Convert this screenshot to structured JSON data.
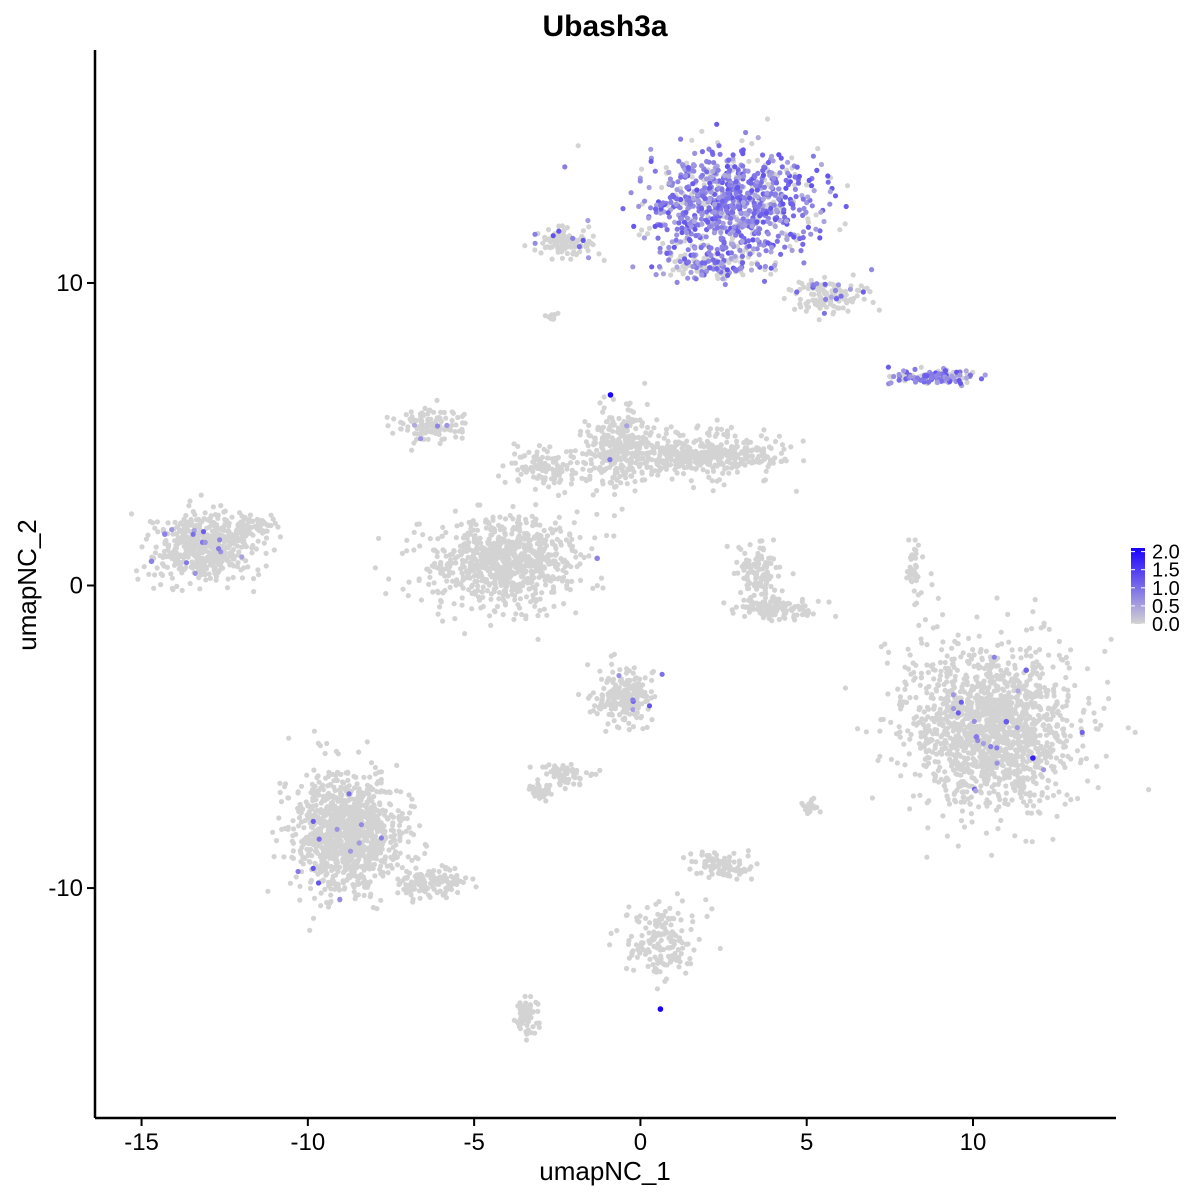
{
  "chart_data": {
    "type": "scatter",
    "title": "Ubash3a",
    "xlabel": "umapNC_1",
    "ylabel": "umapNC_2",
    "xlim": [
      -16.4,
      14.3
    ],
    "ylim": [
      -17.6,
      17.7
    ],
    "xticks": [
      -15,
      -10,
      -5,
      0,
      5,
      10
    ],
    "xtick_labels": [
      "-15",
      "-10",
      "-5",
      "0",
      "5",
      "10"
    ],
    "yticks": [
      -10,
      0,
      10
    ],
    "ytick_labels": [
      "-10",
      "0",
      "10"
    ],
    "grid": false,
    "legend": {
      "placement": "right",
      "type": "colorbar",
      "color_low": "#d3d3d3",
      "color_high": "#1a00ff",
      "range": [
        0,
        2.1
      ],
      "labels": [
        "0.0",
        "0.5",
        "1.0",
        "1.5",
        "2.0"
      ],
      "values": [
        0.0,
        0.5,
        1.0,
        1.5,
        2.0
      ]
    },
    "clusters": [
      {
        "center": [
          2.8,
          12.6
        ],
        "spread": [
          2.2,
          1.6
        ],
        "count": 900,
        "expression": 0.7
      },
      {
        "center": [
          -2.3,
          11.3
        ],
        "spread": [
          0.8,
          0.4
        ],
        "count": 120,
        "expression": 0.05
      },
      {
        "center": [
          2.0,
          10.6
        ],
        "spread": [
          1.4,
          0.4
        ],
        "count": 130,
        "expression": 0.4
      },
      {
        "center": [
          5.6,
          9.6
        ],
        "spread": [
          1.0,
          0.5
        ],
        "count": 130,
        "expression": 0.1
      },
      {
        "center": [
          -2.7,
          8.9
        ],
        "spread": [
          0.2,
          0.1
        ],
        "count": 12,
        "expression": 0.0
      },
      {
        "center": [
          8.8,
          6.9
        ],
        "spread": [
          1.2,
          0.2
        ],
        "count": 120,
        "expression": 0.6
      },
      {
        "center": [
          -0.6,
          4.6
        ],
        "spread": [
          1.0,
          1.3
        ],
        "count": 300,
        "expression": 0.01
      },
      {
        "center": [
          1.8,
          4.3
        ],
        "spread": [
          2.2,
          0.7
        ],
        "count": 420,
        "expression": 0.0
      },
      {
        "center": [
          -2.9,
          3.9
        ],
        "spread": [
          0.8,
          0.6
        ],
        "count": 120,
        "expression": 0.0
      },
      {
        "center": [
          -6.3,
          5.3
        ],
        "spread": [
          0.9,
          0.5
        ],
        "count": 120,
        "expression": 0.02
      },
      {
        "center": [
          -4.1,
          0.8
        ],
        "spread": [
          2.0,
          1.3
        ],
        "count": 800,
        "expression": 0.0
      },
      {
        "center": [
          -13.1,
          1.3
        ],
        "spread": [
          1.4,
          1.0
        ],
        "count": 500,
        "expression": 0.02
      },
      {
        "center": [
          -11.6,
          2.0
        ],
        "spread": [
          0.6,
          0.3
        ],
        "count": 40,
        "expression": 0.0
      },
      {
        "center": [
          3.5,
          0.3
        ],
        "spread": [
          0.6,
          1.0
        ],
        "count": 120,
        "expression": 0.0
      },
      {
        "center": [
          4.2,
          -0.8
        ],
        "spread": [
          1.1,
          0.3
        ],
        "count": 100,
        "expression": 0.0
      },
      {
        "center": [
          8.2,
          0.4
        ],
        "spread": [
          0.2,
          1.0
        ],
        "count": 40,
        "expression": 0.0
      },
      {
        "center": [
          10.5,
          -4.6
        ],
        "spread": [
          2.3,
          2.4
        ],
        "count": 1500,
        "expression": 0.01
      },
      {
        "center": [
          -0.5,
          -3.7
        ],
        "spread": [
          0.8,
          0.8
        ],
        "count": 220,
        "expression": 0.03
      },
      {
        "center": [
          -2.3,
          -6.3
        ],
        "spread": [
          0.7,
          0.4
        ],
        "count": 60,
        "expression": 0.0
      },
      {
        "center": [
          -3.0,
          -6.8
        ],
        "spread": [
          0.3,
          0.2
        ],
        "count": 40,
        "expression": 0.0
      },
      {
        "center": [
          2.4,
          -9.2
        ],
        "spread": [
          0.8,
          0.4
        ],
        "count": 90,
        "expression": 0.0
      },
      {
        "center": [
          -8.8,
          -8.2
        ],
        "spread": [
          1.5,
          1.8
        ],
        "count": 1100,
        "expression": 0.01
      },
      {
        "center": [
          -6.3,
          -9.8
        ],
        "spread": [
          1.0,
          0.4
        ],
        "count": 120,
        "expression": 0.0
      },
      {
        "center": [
          -3.4,
          -14.2
        ],
        "spread": [
          0.3,
          0.6
        ],
        "count": 60,
        "expression": 0.0
      },
      {
        "center": [
          0.6,
          -11.7
        ],
        "spread": [
          1.0,
          1.2
        ],
        "count": 160,
        "expression": 0.0
      },
      {
        "center": [
          5.1,
          -7.3
        ],
        "spread": [
          0.3,
          0.3
        ],
        "count": 20,
        "expression": 0.0
      }
    ],
    "highlighted_points": [
      {
        "x": -0.9,
        "y": 6.3,
        "value": 2.1
      },
      {
        "x": 0.6,
        "y": -14.0,
        "value": 2.1
      },
      {
        "x": 11.8,
        "y": -5.7,
        "value": 1.8
      },
      {
        "x": 11.0,
        "y": -4.5,
        "value": 1.2
      },
      {
        "x": 11.6,
        "y": -2.8,
        "value": 1.1
      },
      {
        "x": 10.1,
        "y": -5.0,
        "value": 0.9
      },
      {
        "x": -1.3,
        "y": 0.9,
        "value": 0.8
      },
      {
        "x": -14.3,
        "y": 1.7,
        "value": 0.8
      },
      {
        "x": -14.7,
        "y": 0.8,
        "value": 0.8
      }
    ]
  }
}
